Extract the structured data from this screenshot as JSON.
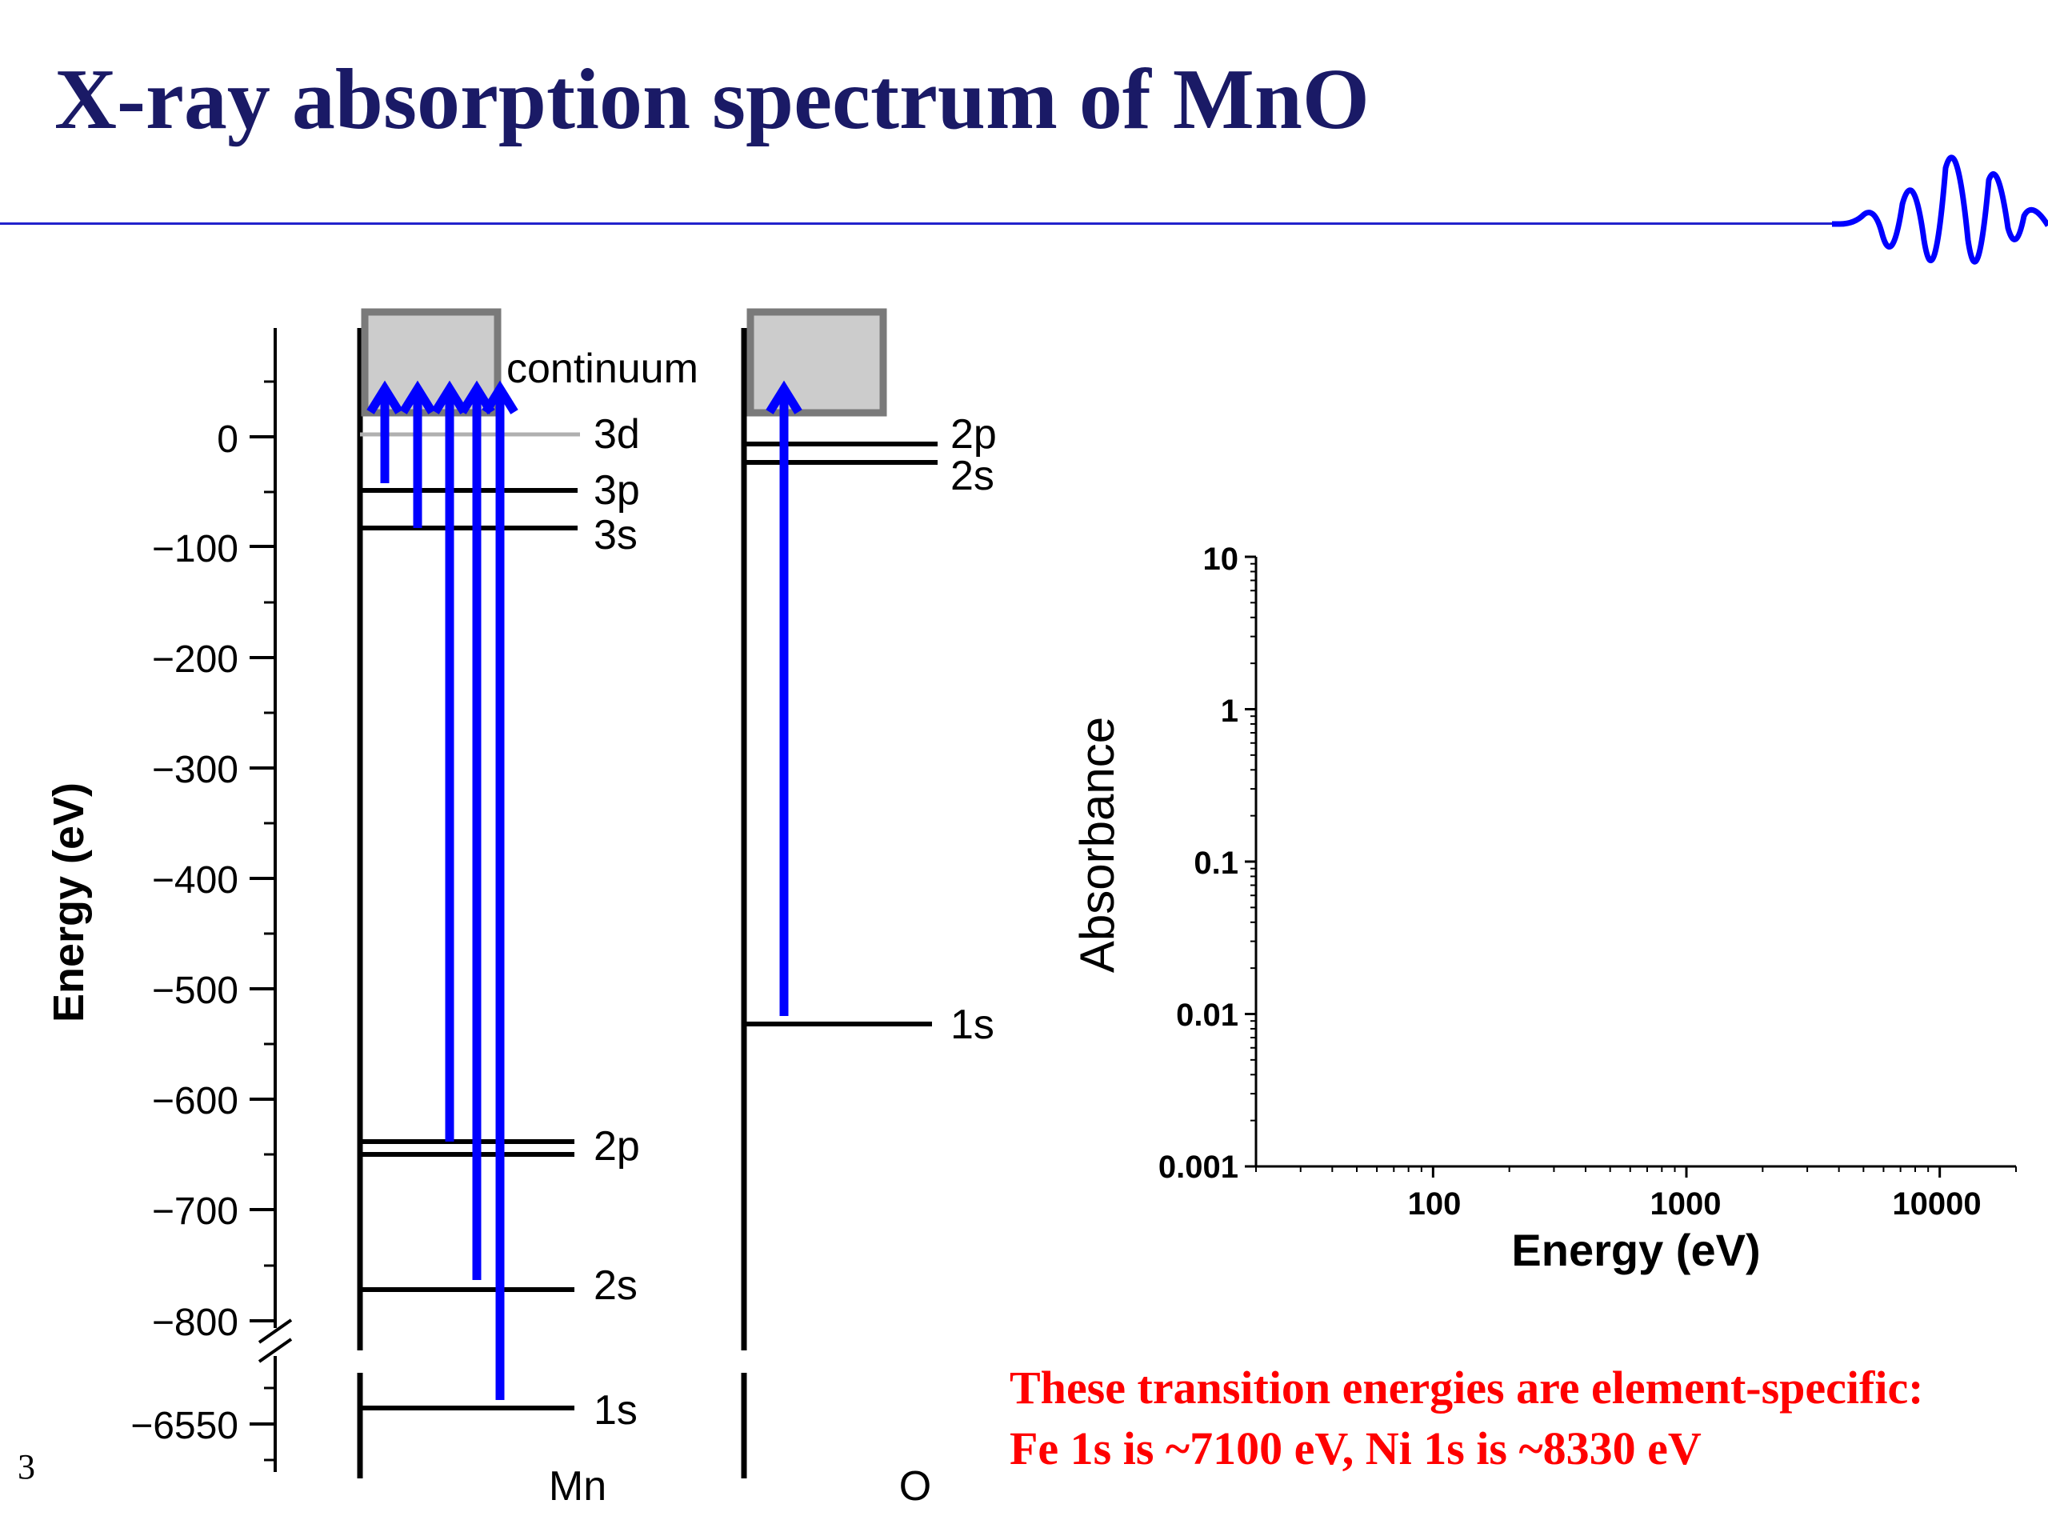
{
  "slide": {
    "title": "X-ray absorption spectrum of MnO",
    "page_number": "3",
    "note_line1": "These transition energies are element-specific:",
    "note_line2": "Fe 1s is ~7100 eV, Ni 1s is ~8330 eV",
    "colors": {
      "title": "#1a1a66",
      "rule": "#2222cc",
      "arrow": "#0000ff",
      "note": "#ff0000",
      "continuum": "#cccccc"
    },
    "logo_icon": "wave-packet-icon"
  },
  "diagram": {
    "y_axis_label": "Energy (eV)",
    "y_ticks": [
      "0",
      "−100",
      "−200",
      "−300",
      "−400",
      "−500",
      "−600",
      "−700",
      "−800",
      "−6550"
    ],
    "continuum_label": "continuum",
    "mn": {
      "label": "Mn",
      "levels": [
        {
          "name": "3d",
          "energy": 0
        },
        {
          "name": "3p",
          "energy": -48
        },
        {
          "name": "3s",
          "energy": -82
        },
        {
          "name": "2p",
          "energy": -640
        },
        {
          "name": "2s",
          "energy": -770
        },
        {
          "name": "1s",
          "energy": -6540
        }
      ]
    },
    "o": {
      "label": "O",
      "levels": [
        {
          "name": "2p",
          "energy": -7
        },
        {
          "name": "2s",
          "energy": -24
        },
        {
          "name": "1s",
          "energy": -532
        }
      ]
    }
  },
  "chart_data": {
    "type": "line",
    "xlabel": "Energy (eV)",
    "ylabel": "Absorbance",
    "x_scale": "log",
    "y_scale": "log",
    "xlim": [
      20,
      20000
    ],
    "ylim": [
      0.001,
      10
    ],
    "x_ticks": [
      "100",
      "1000",
      "10000"
    ],
    "y_ticks": [
      "10",
      "1",
      "0.1",
      "0.01",
      "0.001"
    ],
    "series": []
  }
}
